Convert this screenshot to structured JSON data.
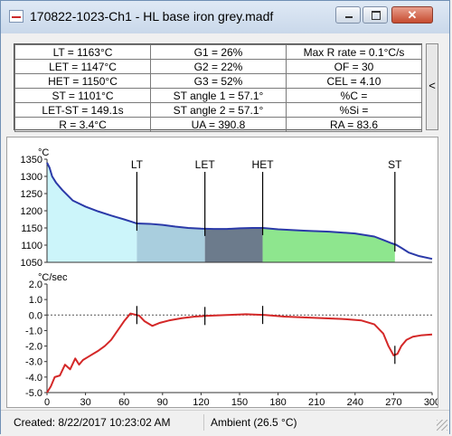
{
  "window": {
    "title": "170822-1023-Ch1 - HL base iron grey.madf",
    "close_glyph": "✕"
  },
  "stats": {
    "rows": [
      [
        "LT = 1163°C",
        "G1 = 26%",
        "Max R rate = 0.1°C/s"
      ],
      [
        "LET = 1147°C",
        "G2 = 22%",
        "OF = 30"
      ],
      [
        "HET = 1150°C",
        "G3 = 52%",
        "CEL = 4.10"
      ],
      [
        "ST = 1101°C",
        "ST angle 1 = 57.1°",
        "%C ="
      ],
      [
        "LET-ST = 149.1s",
        "ST angle 2 = 57.1°",
        "%Si ="
      ],
      [
        "R = 3.4°C",
        "UA = 390.8",
        "RA = 83.6"
      ]
    ],
    "collapse_label": "<"
  },
  "chart_data": [
    {
      "type": "line",
      "title": "",
      "ylabel": "°C",
      "xlim": [
        0,
        300
      ],
      "ylim": [
        1050,
        1350
      ],
      "yticks": [
        "1350",
        "1300",
        "1250",
        "1200",
        "1150",
        "1100",
        "1050"
      ],
      "markers": [
        {
          "label": "LT",
          "x": 70
        },
        {
          "label": "LET",
          "x": 123
        },
        {
          "label": "HET",
          "x": 168
        },
        {
          "label": "ST",
          "x": 271
        }
      ],
      "regions": [
        {
          "from": 0,
          "to": 70,
          "color": "#ccf5fa"
        },
        {
          "from": 70,
          "to": 123,
          "color": "#a9cede"
        },
        {
          "from": 123,
          "to": 168,
          "color": "#6c7b8c"
        },
        {
          "from": 168,
          "to": 271,
          "color": "#8ee68e"
        }
      ],
      "series": [
        {
          "color": "#2b3aa8",
          "x": [
            0,
            2,
            4,
            7,
            12,
            20,
            30,
            40,
            50,
            60,
            66,
            70,
            80,
            90,
            100,
            110,
            120,
            130,
            140,
            150,
            160,
            168,
            180,
            200,
            220,
            240,
            255,
            262,
            268,
            272,
            276,
            282,
            290,
            300
          ],
          "y": [
            1340,
            1325,
            1300,
            1282,
            1260,
            1230,
            1212,
            1198,
            1186,
            1175,
            1168,
            1163,
            1162,
            1159,
            1154,
            1150,
            1148,
            1147,
            1147,
            1149,
            1150,
            1150,
            1146,
            1142,
            1139,
            1134,
            1125,
            1115,
            1106,
            1101,
            1092,
            1078,
            1068,
            1060
          ]
        }
      ]
    },
    {
      "type": "line",
      "title": "",
      "ylabel": "°C/sec",
      "xlim": [
        0,
        300
      ],
      "ylim": [
        -5,
        2
      ],
      "yticks": [
        "2.0",
        "1.0",
        "0.0",
        "-1.0",
        "-2.0",
        "-3.0",
        "-4.0",
        "-5.0"
      ],
      "xticks": [
        "0",
        "30",
        "60",
        "90",
        "120",
        "150",
        "180",
        "210",
        "240",
        "270",
        "300"
      ],
      "markers": [
        {
          "x": 70
        },
        {
          "x": 123
        },
        {
          "x": 168
        },
        {
          "x": 271
        }
      ],
      "series": [
        {
          "color": "#d42828",
          "x": [
            0,
            3,
            6,
            10,
            14,
            18,
            22,
            25,
            28,
            32,
            36,
            40,
            45,
            50,
            55,
            60,
            65,
            70,
            72,
            76,
            82,
            88,
            95,
            105,
            115,
            125,
            140,
            155,
            170,
            185,
            200,
            215,
            230,
            245,
            255,
            262,
            266,
            270,
            273,
            276,
            280,
            285,
            292,
            300
          ],
          "y": [
            -5,
            -4.6,
            -4.0,
            -3.9,
            -3.2,
            -3.5,
            -2.8,
            -3.2,
            -2.9,
            -2.7,
            -2.5,
            -2.3,
            -2.0,
            -1.6,
            -1.0,
            -0.4,
            0.1,
            0.0,
            -0.05,
            -0.4,
            -0.7,
            -0.5,
            -0.35,
            -0.2,
            -0.1,
            -0.05,
            0.0,
            0.05,
            0.0,
            -0.1,
            -0.15,
            -0.2,
            -0.25,
            -0.35,
            -0.6,
            -1.2,
            -2.0,
            -2.6,
            -2.5,
            -2.0,
            -1.6,
            -1.4,
            -1.3,
            -1.25
          ]
        }
      ]
    }
  ],
  "status": {
    "created": "Created: 8/22/2017 10:23:02 AM",
    "ambient": "Ambient (26.5 °C)"
  }
}
